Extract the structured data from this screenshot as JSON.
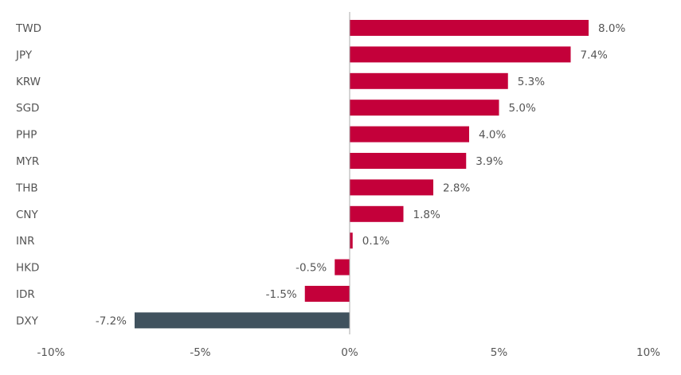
{
  "chart_data": {
    "type": "bar",
    "orientation": "horizontal",
    "title": "",
    "xlabel": "",
    "ylabel": "",
    "categories": [
      "TWD",
      "JPY",
      "KRW",
      "SGD",
      "PHP",
      "MYR",
      "THB",
      "CNY",
      "INR",
      "HKD",
      "IDR",
      "DXY"
    ],
    "values": [
      8.0,
      7.4,
      5.3,
      5.0,
      4.0,
      3.9,
      2.8,
      1.8,
      0.1,
      -0.5,
      -1.5,
      -7.2
    ],
    "data_labels": [
      "8.0%",
      "7.4%",
      "5.3%",
      "5.0%",
      "4.0%",
      "3.9%",
      "2.8%",
      "1.8%",
      "0.1%",
      "-0.5%",
      "-1.5%",
      "-7.2%"
    ],
    "xlim": [
      -10,
      10
    ],
    "xticks": [
      -10,
      -5,
      0,
      5,
      10
    ],
    "xtick_labels": [
      "-10%",
      "-5%",
      "0%",
      "5%",
      "10%"
    ],
    "grid": false,
    "legend": "none",
    "colors": {
      "default": "#c4003a",
      "highlight": "#40525e",
      "highlight_category": "DXY",
      "text": "#555555",
      "axis": "#aaaaaa"
    }
  }
}
